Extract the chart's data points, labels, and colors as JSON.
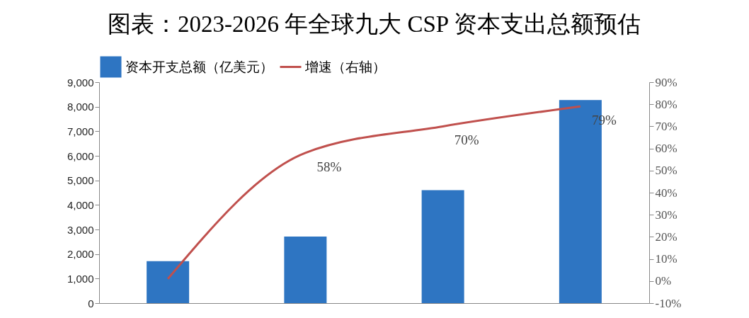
{
  "chart_data": {
    "type": "bar",
    "title": "图表：2023-2026 年全球九大 CSP 资本支出总额预估",
    "categories": [
      null,
      null,
      null,
      null
    ],
    "series": [
      {
        "name": "资本开支总额（亿美元）",
        "color": "#2e75c2",
        "values": [
          1710,
          2710,
          4600,
          8270
        ]
      },
      {
        "name": "增速（右轴）",
        "type": "line",
        "axis": "y2",
        "color": "#c0504d",
        "values": [
          1,
          58,
          70,
          79
        ],
        "value_labels": [
          null,
          "58%",
          "70%",
          "79%"
        ]
      }
    ],
    "ylim": [
      0,
      9000
    ],
    "yticks": [
      {
        "value": 0,
        "label": "0"
      },
      {
        "value": 1000,
        "label": "1,000"
      },
      {
        "value": 2000,
        "label": "2,000"
      },
      {
        "value": 3000,
        "label": "3,000"
      },
      {
        "value": 4000,
        "label": "4,000"
      },
      {
        "value": 5000,
        "label": "5,000"
      },
      {
        "value": 6000,
        "label": "6,000"
      },
      {
        "value": 7000,
        "label": "7,000"
      },
      {
        "value": 8000,
        "label": "8,000"
      },
      {
        "value": 9000,
        "label": "9,000"
      }
    ],
    "y2lim": [
      -10,
      90
    ],
    "y2ticks": [
      {
        "value": -10,
        "label": "-10%"
      },
      {
        "value": 0,
        "label": "0%"
      },
      {
        "value": 10,
        "label": "10%"
      },
      {
        "value": 20,
        "label": "20%"
      },
      {
        "value": 30,
        "label": "30%"
      },
      {
        "value": 40,
        "label": "40%"
      },
      {
        "value": 50,
        "label": "50%"
      },
      {
        "value": 60,
        "label": "60%"
      },
      {
        "value": 70,
        "label": "70%"
      },
      {
        "value": 80,
        "label": "80%"
      },
      {
        "value": 90,
        "label": "90%"
      }
    ],
    "legend": "top",
    "grid": false
  }
}
